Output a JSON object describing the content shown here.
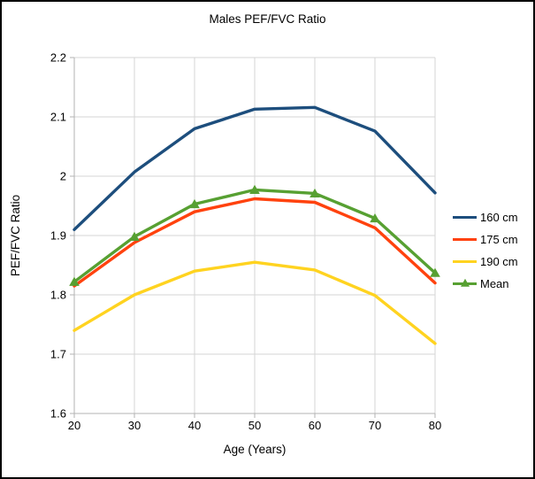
{
  "title": "Males PEF/FVC Ratio",
  "chart_data": {
    "type": "line",
    "x": [
      20,
      30,
      40,
      50,
      60,
      70,
      80
    ],
    "xlabel": "Age (Years)",
    "ylabel": "PEF/FVC Ratio",
    "xlim": [
      20,
      80
    ],
    "ylim": [
      1.6,
      2.2
    ],
    "x_ticks": [
      "20",
      "30",
      "40",
      "50",
      "60",
      "70",
      "80"
    ],
    "y_ticks": [
      "2.2",
      "2.1",
      "2",
      "1.9",
      "1.8",
      "1.7",
      "1.6"
    ],
    "grid": true,
    "legend_position": "right",
    "series": [
      {
        "name": "160 cm",
        "color": "#1D4E7D",
        "marker": "none",
        "values": [
          1.91,
          2.007,
          2.08,
          2.113,
          2.116,
          2.076,
          1.972
        ]
      },
      {
        "name": "175 cm",
        "color": "#FF420E",
        "marker": "none",
        "values": [
          1.815,
          1.888,
          1.94,
          1.962,
          1.956,
          1.913,
          1.82
        ]
      },
      {
        "name": "190 cm",
        "color": "#FFD320",
        "marker": "none",
        "values": [
          1.74,
          1.8,
          1.84,
          1.855,
          1.842,
          1.799,
          1.718
        ]
      },
      {
        "name": "Mean",
        "color": "#57A032",
        "marker": "triangle",
        "values": [
          1.822,
          1.898,
          1.953,
          1.977,
          1.971,
          1.929,
          1.837
        ]
      }
    ]
  },
  "colors": {
    "background": "#ffffff",
    "frame_border": "#000000",
    "gridline": "#d5d5d5",
    "axis": "#b3b3b3",
    "text": "#000000"
  }
}
